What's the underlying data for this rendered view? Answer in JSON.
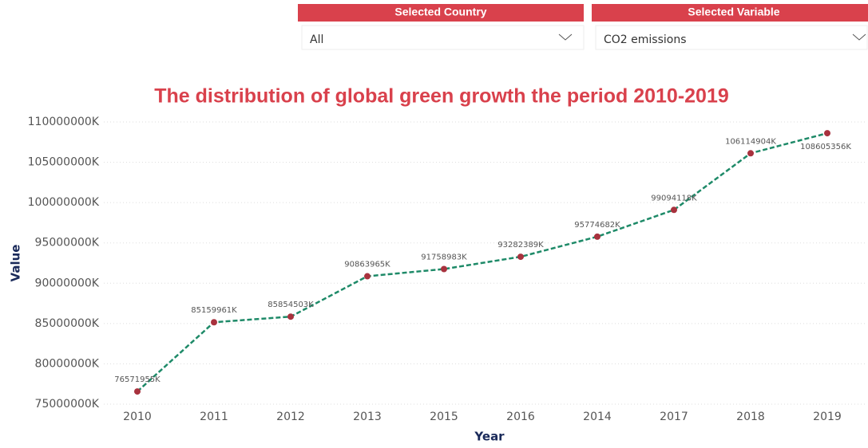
{
  "slicers": [
    {
      "title": "Selected Country",
      "selection": "All"
    },
    {
      "title": "Selected Variable",
      "selection": "CO2 emissions"
    }
  ],
  "chart_data": {
    "type": "line",
    "title": "The distribution of global green growth the period 2010-2019",
    "x_label": "Year",
    "y_label": "Value",
    "categories": [
      "2010",
      "2011",
      "2012",
      "2013",
      "2015",
      "2016",
      "2014",
      "2017",
      "2018",
      "2019"
    ],
    "values": [
      76571955,
      85159961,
      85854503,
      90863965,
      91758983,
      93282389,
      95774682,
      99094118,
      106114904,
      108605356
    ],
    "value_labels": [
      "76571955K",
      "85159961K",
      "85854503K",
      "90863965K",
      "91758983K",
      "93282389K",
      "95774682K",
      "99094118K",
      "106114904K",
      "108605356K"
    ],
    "color": "#1e8a68",
    "marker_color": "#a8323e",
    "ylim": [
      75000000,
      110000000
    ],
    "yticks": [
      {
        "value": 75000000,
        "label": "75000000K"
      },
      {
        "value": 80000000,
        "label": "80000000K"
      },
      {
        "value": 85000000,
        "label": "85000000K"
      },
      {
        "value": 90000000,
        "label": "90000000K"
      },
      {
        "value": 95000000,
        "label": "95000000K"
      },
      {
        "value": 100000000,
        "label": "100000000K"
      },
      {
        "value": 105000000,
        "label": "105000000K"
      },
      {
        "value": 110000000,
        "label": "110000000K"
      }
    ],
    "grid": true
  }
}
